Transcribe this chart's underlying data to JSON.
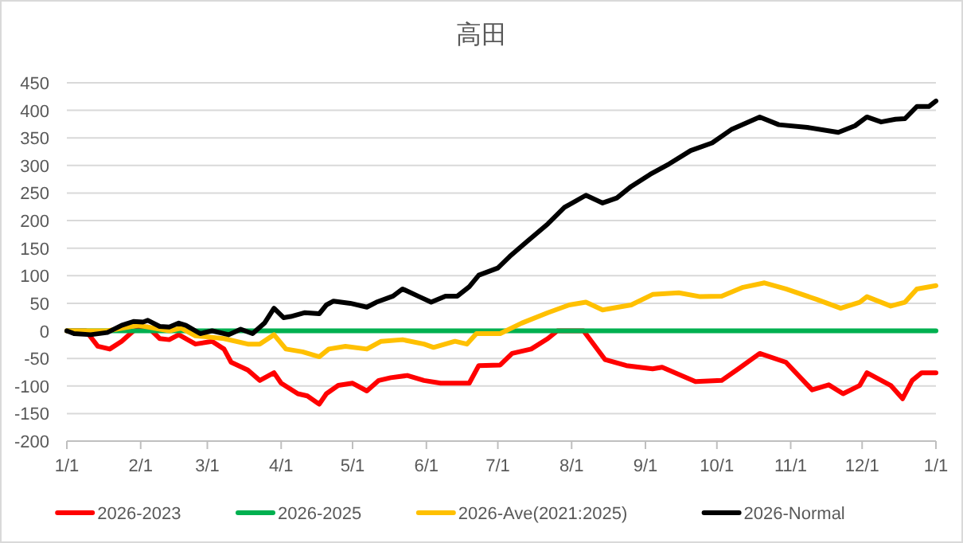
{
  "chart_data": {
    "type": "line",
    "title": "高田",
    "xlim": [
      "2026-01-01",
      "2027-01-01"
    ],
    "xticks": [
      {
        "value": "2026-01-01",
        "label": "1/1"
      },
      {
        "value": "2026-02-01",
        "label": "2/1"
      },
      {
        "value": "2026-03-01",
        "label": "3/1"
      },
      {
        "value": "2026-04-01",
        "label": "4/1"
      },
      {
        "value": "2026-05-01",
        "label": "5/1"
      },
      {
        "value": "2026-06-01",
        "label": "6/1"
      },
      {
        "value": "2026-07-01",
        "label": "7/1"
      },
      {
        "value": "2026-08-01",
        "label": "8/1"
      },
      {
        "value": "2026-09-01",
        "label": "9/1"
      },
      {
        "value": "2026-10-01",
        "label": "10/1"
      },
      {
        "value": "2026-11-01",
        "label": "11/1"
      },
      {
        "value": "2026-12-01",
        "label": "12/1"
      },
      {
        "value": "2027-01-01",
        "label": "1/1"
      }
    ],
    "ylim": [
      -200,
      450
    ],
    "yticks": [
      -200,
      -150,
      -100,
      -50,
      0,
      50,
      100,
      150,
      200,
      250,
      300,
      350,
      400,
      450
    ],
    "grid": "y",
    "legend": "bottom",
    "line_style": "solid",
    "marker": "none",
    "series": [
      {
        "name": "2026-2023",
        "color": "#ff0000",
        "x": [
          "2026-01-01",
          "2026-01-09",
          "2026-01-14",
          "2026-01-19",
          "2026-01-24",
          "2026-01-29",
          "2026-02-04",
          "2026-02-09",
          "2026-02-13",
          "2026-02-17",
          "2026-02-24",
          "2026-03-03",
          "2026-03-08",
          "2026-03-11",
          "2026-03-18",
          "2026-03-23",
          "2026-03-29",
          "2026-04-01",
          "2026-04-08",
          "2026-04-12",
          "2026-04-17",
          "2026-04-20",
          "2026-04-25",
          "2026-05-01",
          "2026-05-07",
          "2026-05-12",
          "2026-05-17",
          "2026-05-24",
          "2026-05-31",
          "2026-06-07",
          "2026-06-13",
          "2026-06-19",
          "2026-06-23",
          "2026-07-02",
          "2026-07-07",
          "2026-07-15",
          "2026-07-22",
          "2026-07-26",
          "2026-08-06",
          "2026-08-15",
          "2026-08-24",
          "2026-09-04",
          "2026-09-08",
          "2026-09-22",
          "2026-10-03",
          "2026-10-10",
          "2026-10-19",
          "2026-10-30",
          "2026-11-10",
          "2026-11-17",
          "2026-11-23",
          "2026-11-30",
          "2026-12-03",
          "2026-12-13",
          "2026-12-18",
          "2026-12-22",
          "2026-12-26",
          "2027-01-01"
        ],
        "values": [
          0,
          0,
          -28,
          -33,
          -19,
          0,
          7,
          -14,
          -16,
          -7,
          -24,
          -19,
          -33,
          -57,
          -71,
          -90,
          -76,
          -95,
          -114,
          -118,
          -133,
          -114,
          -99,
          -95,
          -109,
          -90,
          -85,
          -81,
          -90,
          -95,
          -95,
          -95,
          -63,
          -62,
          -41,
          -33,
          -14,
          0,
          0,
          -52,
          -63,
          -69,
          -66,
          -92,
          -90,
          -69,
          -41,
          -57,
          -107,
          -98,
          -114,
          -99,
          -76,
          -99,
          -123,
          -90,
          -76,
          -76
        ]
      },
      {
        "name": "2026-2025",
        "color": "#00b050",
        "x": [
          "2026-01-01",
          "2027-01-01"
        ],
        "values": [
          0,
          0
        ]
      },
      {
        "name": "2026-Ave(2021:2025)",
        "color": "#ffc000",
        "x": [
          "2026-01-01",
          "2026-01-18",
          "2026-01-31",
          "2026-02-13",
          "2026-02-18",
          "2026-02-24",
          "2026-03-08",
          "2026-03-18",
          "2026-03-23",
          "2026-03-29",
          "2026-04-03",
          "2026-04-10",
          "2026-04-17",
          "2026-04-21",
          "2026-04-28",
          "2026-05-07",
          "2026-05-13",
          "2026-05-22",
          "2026-05-31",
          "2026-06-04",
          "2026-06-13",
          "2026-06-18",
          "2026-06-22",
          "2026-07-02",
          "2026-07-11",
          "2026-07-22",
          "2026-07-31",
          "2026-08-07",
          "2026-08-14",
          "2026-08-26",
          "2026-09-04",
          "2026-09-15",
          "2026-09-24",
          "2026-10-03",
          "2026-10-12",
          "2026-10-21",
          "2026-10-30",
          "2026-11-12",
          "2026-11-22",
          "2026-11-30",
          "2026-12-03",
          "2026-12-13",
          "2026-12-19",
          "2026-12-24",
          "2027-01-01"
        ],
        "values": [
          0,
          0,
          10,
          0,
          5,
          -9,
          -14,
          -24,
          -24,
          -7,
          -33,
          -38,
          -47,
          -33,
          -28,
          -33,
          -19,
          -16,
          -24,
          -30,
          -19,
          -24,
          -5,
          -5,
          14,
          33,
          47,
          52,
          38,
          47,
          66,
          69,
          62,
          63,
          79,
          87,
          76,
          57,
          41,
          52,
          62,
          45,
          52,
          76,
          82
        ]
      },
      {
        "name": "2026-Normal",
        "color": "#000000",
        "x": [
          "2026-01-01",
          "2026-01-04",
          "2026-01-11",
          "2026-01-18",
          "2026-01-24",
          "2026-01-29",
          "2026-02-02",
          "2026-02-04",
          "2026-02-09",
          "2026-02-13",
          "2026-02-17",
          "2026-02-20",
          "2026-02-26",
          "2026-03-03",
          "2026-03-10",
          "2026-03-15",
          "2026-03-20",
          "2026-03-25",
          "2026-03-29",
          "2026-04-02",
          "2026-04-05",
          "2026-04-11",
          "2026-04-17",
          "2026-04-20",
          "2026-04-23",
          "2026-04-30",
          "2026-05-07",
          "2026-05-11",
          "2026-05-18",
          "2026-05-22",
          "2026-05-29",
          "2026-06-03",
          "2026-06-09",
          "2026-06-14",
          "2026-06-19",
          "2026-06-23",
          "2026-07-01",
          "2026-07-06",
          "2026-07-13",
          "2026-07-22",
          "2026-07-29",
          "2026-08-07",
          "2026-08-14",
          "2026-08-20",
          "2026-08-26",
          "2026-09-03",
          "2026-09-11",
          "2026-09-20",
          "2026-09-29",
          "2026-10-07",
          "2026-10-19",
          "2026-10-27",
          "2026-11-08",
          "2026-11-21",
          "2026-11-28",
          "2026-12-03",
          "2026-12-09",
          "2026-12-15",
          "2026-12-19",
          "2026-12-24",
          "2026-12-29",
          "2027-01-01"
        ],
        "values": [
          0,
          -5,
          -7,
          -3,
          10,
          17,
          16,
          19,
          8,
          7,
          14,
          10,
          -5,
          0,
          -7,
          3,
          -5,
          14,
          41,
          24,
          26,
          33,
          31,
          47,
          54,
          50,
          43,
          52,
          63,
          76,
          62,
          52,
          63,
          63,
          80,
          101,
          114,
          135,
          161,
          194,
          224,
          246,
          232,
          241,
          262,
          284,
          303,
          327,
          341,
          365,
          388,
          374,
          369,
          360,
          372,
          388,
          379,
          384,
          385,
          407,
          407,
          417
        ]
      }
    ]
  }
}
